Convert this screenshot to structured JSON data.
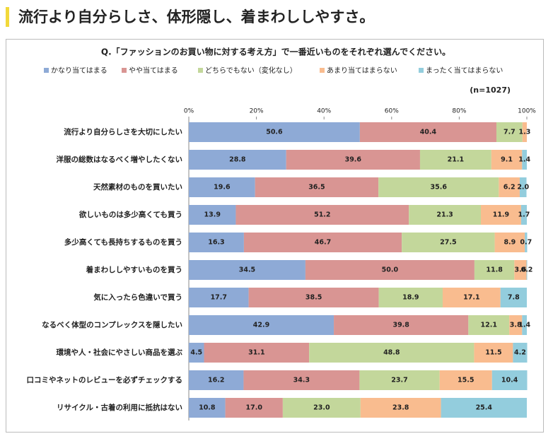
{
  "header": {
    "title": "流行より自分らしさ、体形隠し、着まわししやすさ。"
  },
  "chart_data": {
    "type": "stacked-barh",
    "title": "Q.「ファッションのお買い物に対する考え方」で一番近いものをそれぞれ選んでください。",
    "note": "(n=1027)",
    "categories": [
      "流行より自分らしさを大切にしたい",
      "洋服の総数はなるべく増やしたくない",
      "天然素材のものを買いたい",
      "欲しいものは多少高くても買う",
      "多少高くても長持ちするものを買う",
      "着まわししやすいものを買う",
      "気に入ったら色違いで買う",
      "なるべく体型のコンプレックスを隠したい",
      "環境や人・社会にやさしい商品を選ぶ",
      "口コミやネットのレビューを必ずチェックする",
      "リサイクル・古着の利用に抵抗はない"
    ],
    "xlim": [
      0,
      100
    ],
    "xticks": [
      {
        "value": 0,
        "label": "0%"
      },
      {
        "value": 20,
        "label": "20%"
      },
      {
        "value": 40,
        "label": "40%"
      },
      {
        "value": 60,
        "label": "60%"
      },
      {
        "value": 80,
        "label": "80%"
      },
      {
        "value": 100,
        "label": "100%"
      }
    ],
    "series": [
      {
        "name": "かなり当てはまる",
        "color": "#8eaad6",
        "values": [
          50.6,
          28.8,
          19.6,
          13.9,
          16.3,
          34.5,
          17.7,
          42.9,
          4.5,
          16.2,
          10.8
        ],
        "value_labels": [
          "50.6",
          "28.8",
          "19.6",
          "13.9",
          "16.3",
          "34.5",
          "17.7",
          "42.9",
          "4.5",
          "16.2",
          "10.8"
        ]
      },
      {
        "name": "やや当てはまる",
        "color": "#d99593",
        "values": [
          40.4,
          39.6,
          36.5,
          51.2,
          46.7,
          50,
          38.5,
          39.8,
          31.1,
          34.3,
          17
        ],
        "value_labels": [
          "40.4",
          "39.6",
          "36.5",
          "51.2",
          "46.7",
          "50.0",
          "38.5",
          "39.8",
          "31.1",
          "34.3",
          "17.0"
        ]
      },
      {
        "name": "どちらでもない（変化なし）",
        "color": "#c3d79b",
        "values": [
          7.7,
          21.1,
          35.6,
          21.3,
          27.5,
          11.8,
          18.9,
          12.1,
          48.8,
          23.7,
          23
        ],
        "value_labels": [
          "7.7",
          "21.1",
          "35.6",
          "21.3",
          "27.5",
          "11.8",
          "18.9",
          "12.1",
          "48.8",
          "23.7",
          "23.0"
        ]
      },
      {
        "name": "あまり当てはまらない",
        "color": "#f9bc8f",
        "values": [
          1.3,
          9.1,
          6.2,
          11.9,
          8.9,
          3.6,
          17.1,
          3.8,
          11.5,
          15.5,
          23.8
        ],
        "value_labels": [
          "1.3",
          "9.1",
          "6.2",
          "11.9",
          "8.9",
          "3.6",
          "17.1",
          "3.8",
          "11.5",
          "15.5",
          "23.8"
        ]
      },
      {
        "name": "まったく当てはまらない",
        "color": "#93cddd",
        "values": [
          null,
          1.4,
          2,
          1.7,
          0.7,
          0.2,
          7.8,
          1.4,
          4.2,
          10.4,
          25.4
        ],
        "value_labels": [
          null,
          "1.4",
          "2.0",
          "1.7",
          "0.7",
          "0.2",
          "7.8",
          "1.4",
          "4.2",
          "10.4",
          "25.4"
        ]
      }
    ]
  }
}
